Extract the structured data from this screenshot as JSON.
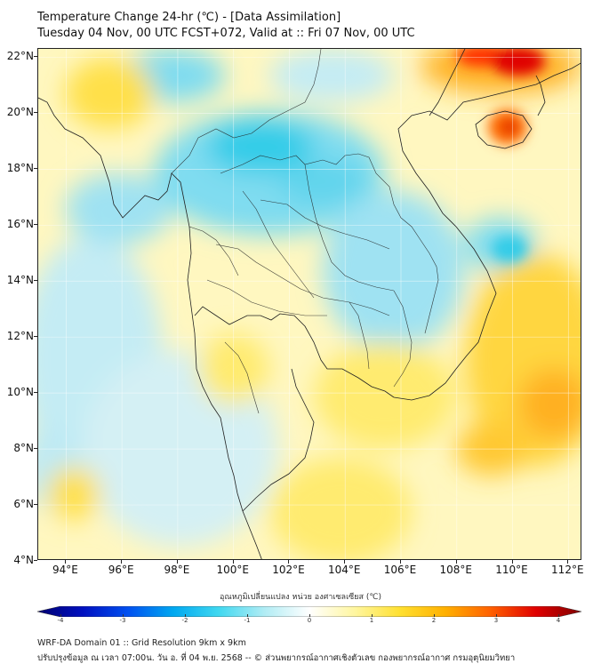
{
  "header": {
    "title": "Temperature Change 24-hr (℃) - [Data Assimilation]",
    "subtitle": "Tuesday 04 Nov, 00 UTC FCST+072, Valid at :: Fri 07 Nov, 00 UTC"
  },
  "map": {
    "lat_labels": [
      "22°N",
      "20°N",
      "18°N",
      "16°N",
      "14°N",
      "12°N",
      "10°N",
      "8°N",
      "6°N",
      "4°N"
    ],
    "lon_labels": [
      "94°E",
      "96°E",
      "98°E",
      "100°E",
      "102°E",
      "104°E",
      "106°E",
      "108°E",
      "110°E",
      "112°E"
    ],
    "lat_range": [
      4,
      22.3
    ],
    "lon_range": [
      93,
      112.5
    ],
    "colors": {
      "cold_strong": "#00c8e8",
      "cold": "#7fdcf0",
      "cool": "#c4ecf4",
      "neutral": "#fff7c0",
      "warm": "#ffe04a",
      "hot": "#ffb020",
      "very_hot": "#ff5a00",
      "extreme": "#e00000",
      "coastline": "#202020"
    }
  },
  "colorbar": {
    "label": "อุณหภูมิเปลี่ยนแปลง หน่วย องศาเซลเซียส (℃)",
    "ticks": [
      "-4",
      "-3",
      "-2",
      "-1",
      "0",
      "1",
      "2",
      "3",
      "4"
    ],
    "min": -4,
    "max": 4,
    "stops": [
      "#000070",
      "#0010c0",
      "#0050f0",
      "#00a8f0",
      "#40d8f0",
      "#b0ecf4",
      "#ffffff",
      "#fff6a0",
      "#ffe030",
      "#ffb000",
      "#ff6000",
      "#e00000",
      "#800000"
    ]
  },
  "footer": {
    "line1": "WRF-DA Domain 01 :: Grid Resolution 9km x 9km",
    "line2": "ปรับปรุงข้อมูล ณ เวลา 07:00น. วัน อ. ที่ 04 พ.ย. 2568 -- © ส่วนพยากรณ์อากาศเชิงตัวเลข กองพยากรณ์อากาศ กรมอุตุนิยมวิทยา"
  }
}
